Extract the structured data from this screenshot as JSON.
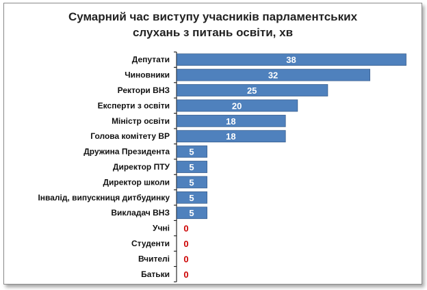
{
  "chart_data": {
    "type": "bar",
    "orientation": "horizontal",
    "title_lines": [
      "Сумарний час виступу учасників парламентських",
      "слухань з питань освіти, хв"
    ],
    "xlabel": "",
    "ylabel": "",
    "grid": false,
    "legend": false,
    "xlim": [
      0,
      38
    ],
    "categories": [
      "Депутати",
      "Чиновники",
      "Ректори ВНЗ",
      "Експерти з освіти",
      "Міністр освіти",
      "Голова комітету ВР",
      "Дружина Президента",
      "Директор ПТУ",
      "Директор школи",
      "Інвалід, випускниця дитбудинку",
      "Викладач ВНЗ",
      "Учні",
      "Студенти",
      "Вчителі",
      "Батьки"
    ],
    "values": [
      38,
      32,
      25,
      20,
      18,
      18,
      5,
      5,
      5,
      5,
      5,
      0,
      0,
      0,
      0
    ],
    "colors": {
      "bar_fill": "#4f81bd",
      "bar_border": "#3a5f8f",
      "value_label": "#ffffff",
      "zero_label": "#cc0000",
      "axis": "#000000"
    }
  }
}
